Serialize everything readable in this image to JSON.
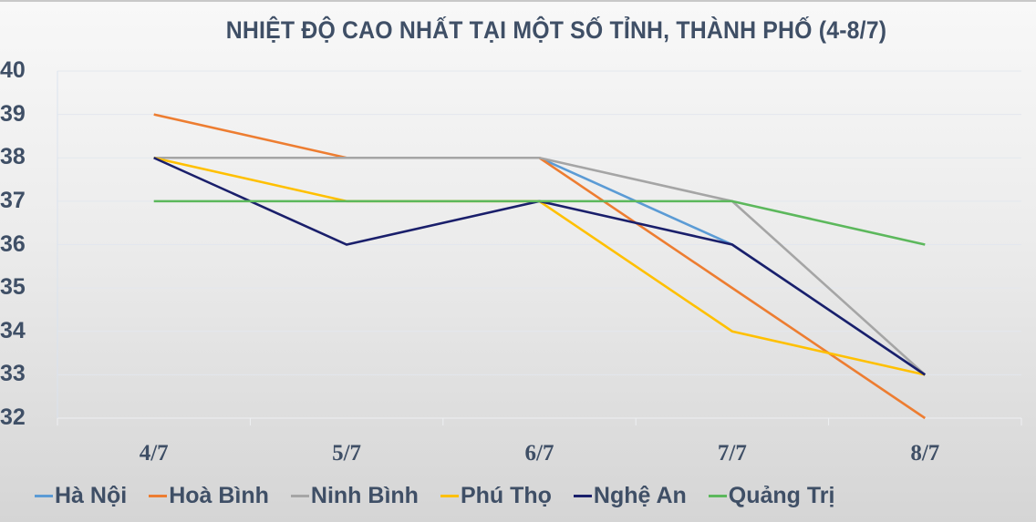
{
  "chart_data": {
    "type": "line",
    "title": "NHIỆT ĐỘ CAO NHẤT TẠI MỘT SỐ TỈNH, THÀNH PHỐ (4-8/7)",
    "xlabel": "",
    "ylabel": "",
    "categories": [
      "4/7",
      "5/7",
      "6/7",
      "7/7",
      "8/7"
    ],
    "ylim": [
      32,
      40
    ],
    "yticks": [
      "40",
      "39",
      "38",
      "37",
      "36",
      "35",
      "34",
      "33",
      "32"
    ],
    "grid": true,
    "legend_position": "bottom",
    "series": [
      {
        "name": "Hà Nội",
        "color": "#5b9bd5",
        "values": [
          38,
          38,
          38,
          36,
          33
        ]
      },
      {
        "name": "Hoà Bình",
        "color": "#ed7d31",
        "values": [
          39,
          38,
          38,
          35,
          32
        ]
      },
      {
        "name": "Ninh Bình",
        "color": "#a5a5a5",
        "values": [
          38,
          38,
          38,
          37,
          33
        ]
      },
      {
        "name": "Phú Thọ",
        "color": "#ffc000",
        "values": [
          38,
          37,
          37,
          34,
          33
        ]
      },
      {
        "name": "Nghệ An",
        "color": "#1a1f6b",
        "values": [
          38,
          36,
          37,
          36,
          33
        ]
      },
      {
        "name": "Quảng Trị",
        "color": "#5cb85c",
        "values": [
          37,
          37,
          37,
          37,
          36
        ]
      }
    ]
  }
}
